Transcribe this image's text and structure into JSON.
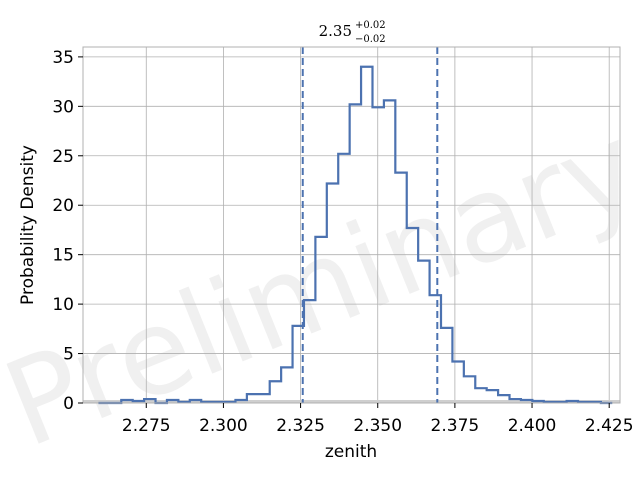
{
  "chart_data": {
    "type": "histogram",
    "title": {
      "main": "2.35",
      "sup": "+0.02",
      "sub": "−0.02"
    },
    "xlabel": "zenith",
    "ylabel": "Probability Density",
    "xlim": [
      2.2545,
      2.4285
    ],
    "ylim": [
      0,
      36
    ],
    "xticks": [
      2.275,
      2.3,
      2.325,
      2.35,
      2.375,
      2.4,
      2.425
    ],
    "xtick_labels": [
      "2.275",
      "2.300",
      "2.325",
      "2.350",
      "2.375",
      "2.400",
      "2.425"
    ],
    "yticks": [
      0,
      5,
      10,
      15,
      20,
      25,
      30,
      35
    ],
    "ytick_labels": [
      "0",
      "5",
      "10",
      "15",
      "20",
      "25",
      "30",
      "35"
    ],
    "grid": true,
    "watermark": "Preliminary",
    "step_color": "#4c72b0",
    "vlines": [
      2.3257,
      2.3693
    ],
    "bins": {
      "edges": [
        2.2595,
        2.2632,
        2.2669,
        2.2706,
        2.2743,
        2.278,
        2.2817,
        2.2854,
        2.2891,
        2.2928,
        2.2965,
        2.3002,
        2.3039,
        2.3076,
        2.3113,
        2.315,
        2.3187,
        2.3224,
        2.3261,
        2.3298,
        2.3335,
        2.3372,
        2.3409,
        2.3446,
        2.3483,
        2.352,
        2.3557,
        2.3594,
        2.3631,
        2.3668,
        2.3705,
        2.3742,
        2.3779,
        2.3816,
        2.3853,
        2.389,
        2.3927,
        2.3964,
        2.4001,
        2.4038,
        2.4075,
        2.4112,
        2.4149,
        2.4186,
        2.4223,
        2.426
      ],
      "values": [
        0.0,
        0.0,
        0.3,
        0.2,
        0.4,
        0.0,
        0.3,
        0.1,
        0.3,
        0.1,
        0.1,
        0.1,
        0.3,
        0.9,
        0.9,
        2.2,
        3.6,
        7.8,
        10.4,
        16.8,
        22.2,
        25.2,
        30.2,
        34.0,
        29.9,
        30.6,
        23.3,
        17.7,
        14.4,
        10.9,
        7.6,
        4.2,
        2.7,
        1.5,
        1.3,
        0.8,
        0.4,
        0.3,
        0.2,
        0.1,
        0.1,
        0.2,
        0.1,
        0.1,
        0.0
      ]
    }
  }
}
